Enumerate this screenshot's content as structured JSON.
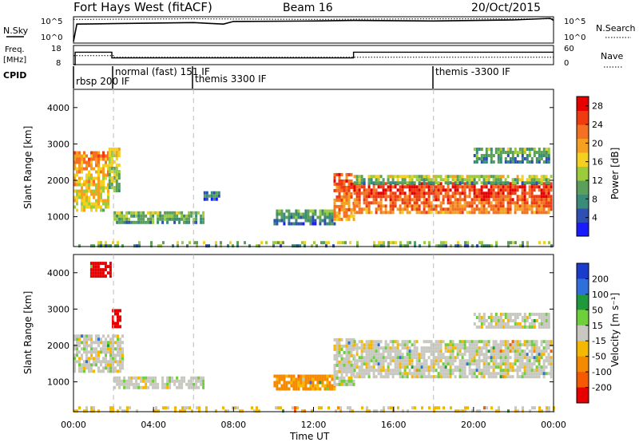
{
  "header": {
    "title": "Fort Hays West (fitACF)",
    "beam": "Beam 16",
    "date": "20/Oct/2015"
  },
  "chart_data": [
    {
      "type": "line",
      "name": "noise-panel",
      "left_label": "N.Sky",
      "right_label": "N.Search",
      "left_ticks": [
        "10^5",
        "10^0"
      ],
      "right_ticks": [
        "10^5",
        "10^0"
      ],
      "series": [
        {
          "name": "N.Sky",
          "x": [
            "00:00",
            "00:10",
            "02:00",
            "06:00",
            "07:30",
            "08:00",
            "12:00",
            "14:00",
            "18:00",
            "22:00",
            "23:50",
            "24:00"
          ],
          "y_log10": [
            0.3,
            3.6,
            3.7,
            3.9,
            3.6,
            4.1,
            4.2,
            4.3,
            4.2,
            4.4,
            4.7,
            4.3
          ]
        },
        {
          "name": "N.Search",
          "x": [
            "00:00",
            "06:00",
            "12:00",
            "18:00",
            "24:00"
          ],
          "y_log10": [
            4.5,
            4.6,
            4.5,
            4.6,
            4.6
          ]
        }
      ]
    },
    {
      "type": "line",
      "name": "freq-panel",
      "left_label": "Freq. [MHz]",
      "right_label": "Nave",
      "left_ticks": [
        "18",
        "8"
      ],
      "right_ticks": [
        "60",
        "0"
      ],
      "series": [
        {
          "name": "Freq",
          "x": [
            "00:00",
            "00:05",
            "01:55",
            "14:00",
            "24:00"
          ],
          "y": [
            8,
            14.5,
            11.5,
            14.5,
            14.5
          ]
        },
        {
          "name": "Nave",
          "x": [
            "00:00",
            "02:00",
            "14:00",
            "24:00"
          ],
          "y": [
            28,
            23,
            23,
            23
          ]
        }
      ]
    },
    {
      "type": "table",
      "name": "cpid-strip",
      "label": "CPID",
      "entries": [
        {
          "time": "00:00",
          "text": "rbsp 200 IF"
        },
        {
          "time": "02:00",
          "text": "normal (fast) 151 IF"
        },
        {
          "time": "06:00",
          "text": "themis 3300 IF"
        },
        {
          "time": "18:00",
          "text": "themis -3300 IF"
        }
      ]
    },
    {
      "type": "heatmap",
      "name": "power",
      "ylabel": "Slant Range [km]",
      "yticks": [
        1000,
        2000,
        3000,
        4000
      ],
      "ylim": [
        180,
        4500
      ],
      "xlim": [
        "00:00",
        "24:00"
      ],
      "colorbar": {
        "label": "Power [dB]",
        "ticks": [
          4,
          8,
          12,
          16,
          20,
          24,
          28
        ],
        "range": [
          0,
          30
        ],
        "colors": [
          "#1a1aff",
          "#2e4fb4",
          "#3a8c7a",
          "#5aa05a",
          "#9ccc3c",
          "#f5d020",
          "#f5a020",
          "#f57020",
          "#f03a10",
          "#e80000"
        ]
      },
      "regions": [
        {
          "t0": "00:00",
          "t1": "01:45",
          "r0": 1200,
          "r1": 2800,
          "level": 18
        },
        {
          "t0": "01:45",
          "t1": "02:20",
          "r0": 1700,
          "r1": 2900,
          "level": 14
        },
        {
          "t0": "02:00",
          "t1": "06:30",
          "r0": 800,
          "r1": 1150,
          "level": 10
        },
        {
          "t0": "06:30",
          "t1": "07:20",
          "r0": 1500,
          "r1": 1700,
          "level": 6
        },
        {
          "t0": "10:00",
          "t1": "13:00",
          "r0": 800,
          "r1": 1200,
          "level": 8
        },
        {
          "t0": "13:00",
          "t1": "14:00",
          "r0": 950,
          "r1": 2200,
          "level": 22
        },
        {
          "t0": "14:00",
          "t1": "23:50",
          "r0": 1150,
          "r1": 1950,
          "level": 24
        },
        {
          "t0": "14:00",
          "t1": "23:50",
          "r0": 1950,
          "r1": 2150,
          "level": 12
        },
        {
          "t0": "20:00",
          "t1": "23:50",
          "r0": 2500,
          "r1": 2900,
          "level": 9
        },
        {
          "t0": "00:00",
          "t1": "24:00",
          "r0": 200,
          "r1": 330,
          "level": 10
        }
      ]
    },
    {
      "type": "heatmap",
      "name": "velocity",
      "ylabel": "Slant Range [km]",
      "yticks": [
        1000,
        2000,
        3000,
        4000
      ],
      "ylim": [
        180,
        4500
      ],
      "xlim": [
        "00:00",
        "24:00"
      ],
      "xticks": [
        "00:00",
        "04:00",
        "08:00",
        "12:00",
        "16:00",
        "20:00",
        "00:00"
      ],
      "xlabel": "Time UT",
      "colorbar": {
        "label": "Velocity [m s⁻¹]",
        "ticks": [
          "200",
          "100",
          "50",
          "15",
          "-15",
          "-50",
          "-100",
          "-200"
        ],
        "colors": [
          "#1a3ccc",
          "#2f6fdc",
          "#1e9a3c",
          "#6ecf3a",
          "#c8c8c0",
          "#f5b800",
          "#f58a00",
          "#f55a00",
          "#e80000"
        ]
      },
      "regions": [
        {
          "t0": "00:00",
          "t1": "02:30",
          "r0": 1300,
          "r1": 2300,
          "vel": 0
        },
        {
          "t0": "00:50",
          "t1": "01:50",
          "r0": 3900,
          "r1": 4300,
          "vel": -250
        },
        {
          "t0": "01:55",
          "t1": "02:20",
          "r0": 2500,
          "r1": 3000,
          "vel": -250
        },
        {
          "t0": "02:00",
          "t1": "06:30",
          "r0": 800,
          "r1": 1150,
          "vel": 0
        },
        {
          "t0": "10:00",
          "t1": "13:00",
          "r0": 800,
          "r1": 1200,
          "vel": -60
        },
        {
          "t0": "13:00",
          "t1": "14:00",
          "r0": 950,
          "r1": 2200,
          "vel": 0
        },
        {
          "t0": "14:00",
          "t1": "23:50",
          "r0": 1150,
          "r1": 2150,
          "vel": 0
        },
        {
          "t0": "20:00",
          "t1": "23:50",
          "r0": 2500,
          "r1": 2900,
          "vel": 0
        },
        {
          "t0": "00:00",
          "t1": "24:00",
          "r0": 200,
          "r1": 330,
          "vel": -20
        }
      ]
    }
  ]
}
